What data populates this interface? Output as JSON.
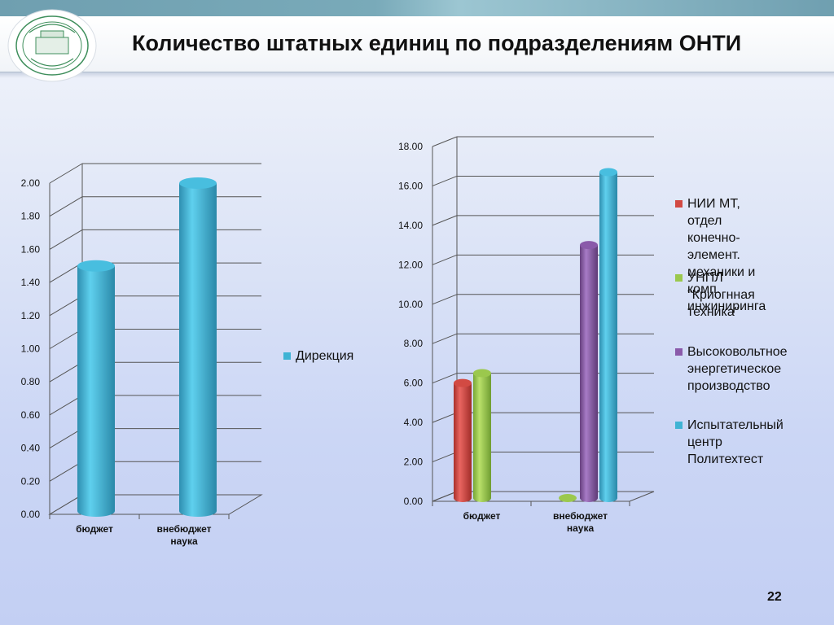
{
  "slide": {
    "title": "Количество штатных единиц по подразделениям ОНТИ",
    "page_number": "22"
  },
  "colors": {
    "direction": "#3fb3d4",
    "nii_mt": "#d24a43",
    "unpl": "#9bc84d",
    "high_voltage": "#8a5aaa",
    "polytechtest": "#3fb3d4",
    "grid": "#555555"
  },
  "chart_data": [
    {
      "type": "bar",
      "categories": [
        "бюджет",
        "внебюджет\nнаука"
      ],
      "series": [
        {
          "name": "Дирекция",
          "values": [
            1.5,
            2.0
          ]
        }
      ],
      "ylim": [
        0,
        2.0
      ],
      "yticks": [
        "0.00",
        "0.20",
        "0.40",
        "0.60",
        "0.80",
        "1.00",
        "1.20",
        "1.40",
        "1.60",
        "1.80",
        "2.00"
      ],
      "legend_position": "right",
      "grid": true,
      "style": "3d-cylinder"
    },
    {
      "type": "bar",
      "categories": [
        "бюджет",
        "внебюджет\nнаука"
      ],
      "series": [
        {
          "name": "НИИ МТ, отдел конечно-элемент. механики и комп. инжиниринга",
          "values": [
            6.0,
            0
          ]
        },
        {
          "name": "УНПЛ \"Криогнная техника\"",
          "values": [
            6.5,
            0
          ]
        },
        {
          "name": "Высоковольтное энергетическое производство",
          "values": [
            0,
            13.0
          ]
        },
        {
          "name": "Испытательный центр Политехтест",
          "values": [
            0,
            16.7
          ]
        }
      ],
      "ylim": [
        0,
        18.0
      ],
      "yticks": [
        "0.00",
        "2.00",
        "4.00",
        "6.00",
        "8.00",
        "10.00",
        "12.00",
        "14.00",
        "16.00",
        "18.00"
      ],
      "legend_position": "right",
      "grid": true,
      "style": "3d-cylinder"
    }
  ],
  "legend_right": {
    "items": [
      {
        "label": "НИИ МТ, отдел\nконечно-элемент.\nмеханики и комп.\nинжиниринга"
      },
      {
        "label": "УНПЛ \"Криогнная\nтехника\""
      },
      {
        "label": "Высоковольтное\nэнергетическое\nпроизводство"
      },
      {
        "label": "Испытательный\nцентр\nПолитехтест"
      }
    ]
  },
  "legend_left": {
    "items": [
      {
        "label": "Дирекция"
      }
    ]
  }
}
